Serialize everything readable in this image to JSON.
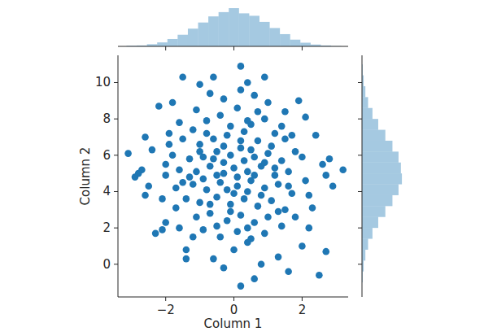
{
  "chart_data": [
    {
      "type": "scatter",
      "x_label": "Column 1",
      "y_label": "Column 2",
      "color": "#1f77b4",
      "marker": "circle",
      "xlim": [
        -3.4,
        3.35
      ],
      "ylim": [
        -1.8,
        11.5
      ],
      "xticks": [
        -2,
        0,
        2
      ],
      "yticks": [
        0,
        2,
        4,
        6,
        8,
        10
      ],
      "grid": false,
      "x": [
        -3.1,
        3.2,
        0.2,
        -1.5,
        -0.6,
        0.9,
        -1.0,
        0.4,
        -2.2,
        -1.8,
        -2.6,
        -2.8,
        -2.7,
        -2.9,
        -2.5,
        -2.6,
        -2.3,
        -2.1,
        -2.0,
        -1.4,
        -1.4,
        -0.6,
        -0.3,
        0.2,
        0.6,
        0.8,
        1.6,
        2.5,
        2.7,
        1.3,
        2.9,
        2.7,
        2.6,
        2.8,
        2.4,
        2.1,
        1.9,
        1.5,
        2.2,
        2.0,
        1.8,
        2.3,
        -1.9,
        -2.4,
        -2.0,
        -1.7,
        -1.6,
        -1.2,
        0.0,
        0.4,
        -1.2,
        -0.8,
        -0.4,
        0.1,
        0.5,
        0.9,
        1.2,
        -1.5,
        -1.0,
        -0.6,
        -0.2,
        0.3,
        0.7,
        1.1,
        1.5,
        1.8,
        -1.8,
        -1.3,
        -0.9,
        -0.5,
        -0.1,
        0.2,
        0.6,
        1.0,
        1.4,
        2.0,
        -2.0,
        -1.6,
        -1.1,
        -0.7,
        -0.3,
        0.0,
        0.4,
        0.8,
        1.2,
        1.6,
        2.1,
        -1.7,
        -1.2,
        -0.8,
        -0.4,
        0.1,
        0.5,
        0.9,
        1.3,
        1.7,
        -1.4,
        -1.0,
        -0.5,
        -0.1,
        0.3,
        0.7,
        1.1,
        1.5,
        -1.1,
        -0.7,
        -0.2,
        0.2,
        0.6,
        1.0,
        1.4,
        -0.9,
        -0.4,
        0.1,
        0.5,
        0.9,
        -0.3,
        0.6,
        -1.1,
        1.0,
        0.2,
        -0.7,
        -0.3,
        0.3,
        0.1,
        -0.5,
        0.6,
        -0.2,
        0.4,
        -0.6,
        0.9,
        -0.9,
        0.2,
        -0.3,
        0.5,
        -1.0,
        1.2,
        -1.3,
        0.0,
        -0.7,
        0.8,
        -0.1,
        0.4,
        -0.5,
        1.3,
        -1.5,
        1.6,
        -0.8,
        0.4,
        1.4,
        -1.6,
        1.7,
        -2.1,
        2.2,
        -1.9,
        -0.1,
        0.7
      ],
      "values": [
        6.1,
        5.2,
        10.9,
        10.3,
        10.3,
        10.3,
        9.9,
        10.0,
        8.7,
        8.9,
        7.0,
        5.0,
        5.2,
        4.8,
        4.3,
        3.8,
        1.7,
        1.9,
        2.3,
        0.8,
        0.3,
        0.3,
        -0.2,
        -1.2,
        -0.8,
        0.0,
        -0.4,
        -0.6,
        0.7,
        0.4,
        4.3,
        4.9,
        5.5,
        5.8,
        7.1,
        8.1,
        9.0,
        8.4,
        2.0,
        1.0,
        2.6,
        3.1,
        6.6,
        6.3,
        5.5,
        3.1,
        2.0,
        1.5,
        0.8,
        1.2,
        7.4,
        7.9,
        8.2,
        8.6,
        7.7,
        8.0,
        7.2,
        6.9,
        6.6,
        6.9,
        7.1,
        7.3,
        6.8,
        6.5,
        6.9,
        6.2,
        6.0,
        5.8,
        5.9,
        6.2,
        6.0,
        6.4,
        5.9,
        6.1,
        5.7,
        5.9,
        4.9,
        5.2,
        5.1,
        5.4,
        5.0,
        5.3,
        5.1,
        5.4,
        4.9,
        5.1,
        4.6,
        4.2,
        4.4,
        4.1,
        4.5,
        4.3,
        4.6,
        4.2,
        4.4,
        3.9,
        3.6,
        3.4,
        3.7,
        3.3,
        3.6,
        3.2,
        3.5,
        3.0,
        2.6,
        2.8,
        2.4,
        2.7,
        2.3,
        2.6,
        2.1,
        1.9,
        1.5,
        1.8,
        1.4,
        1.7,
        9.1,
        9.3,
        8.5,
        8.9,
        9.6,
        9.4,
        5.6,
        5.7,
        4.8,
        4.9,
        4.9,
        4.1,
        4.0,
        5.8,
        5.6,
        4.7,
        6.8,
        6.5,
        6.3,
        6.2,
        5.3,
        4.8,
        3.9,
        3.3,
        3.8,
        2.9,
        2.0,
        2.1,
        2.9,
        4.5,
        4.3,
        7.2,
        7.9,
        7.6,
        7.8,
        7.1,
        3.6,
        3.8,
        7.2,
        7.6,
        8.4
      ]
    },
    {
      "type": "histogram",
      "color": "#1f77b4",
      "tick_labels": false,
      "xlim": [
        -3.4,
        3.35
      ],
      "ylim": [
        0,
        125
      ],
      "xticks": [
        -2,
        0,
        2
      ],
      "bins": [
        -3.15,
        -2.85,
        -2.55,
        -2.25,
        -1.95,
        -1.65,
        -1.35,
        -1.05,
        -0.75,
        -0.45,
        -0.15,
        0.15,
        0.45,
        0.75,
        1.05,
        1.35,
        1.65,
        1.95,
        2.25,
        2.55,
        2.85,
        3.15
      ],
      "values": [
        2,
        3,
        7,
        13,
        24,
        38,
        58,
        78,
        98,
        112,
        125,
        108,
        100,
        80,
        60,
        40,
        22,
        12,
        6,
        3,
        1
      ]
    },
    {
      "type": "histogram",
      "orientation": "horizontal",
      "color": "#1f77b4",
      "tick_labels": false,
      "ylim": [
        -1.8,
        11.5
      ],
      "xlim": [
        0,
        125
      ],
      "yticks": [
        0,
        2,
        4,
        6,
        8,
        10
      ],
      "bins": [
        -1.0,
        -0.4,
        0.2,
        0.8,
        1.4,
        2.0,
        2.6,
        3.2,
        3.8,
        4.4,
        5.0,
        5.6,
        6.2,
        6.8,
        7.4,
        8.0,
        8.6,
        9.2,
        9.8,
        10.4,
        11.0
      ],
      "values": [
        2,
        5,
        10,
        18,
        31,
        48,
        69,
        90,
        108,
        118,
        115,
        108,
        90,
        69,
        48,
        31,
        18,
        10,
        5,
        2
      ]
    }
  ]
}
